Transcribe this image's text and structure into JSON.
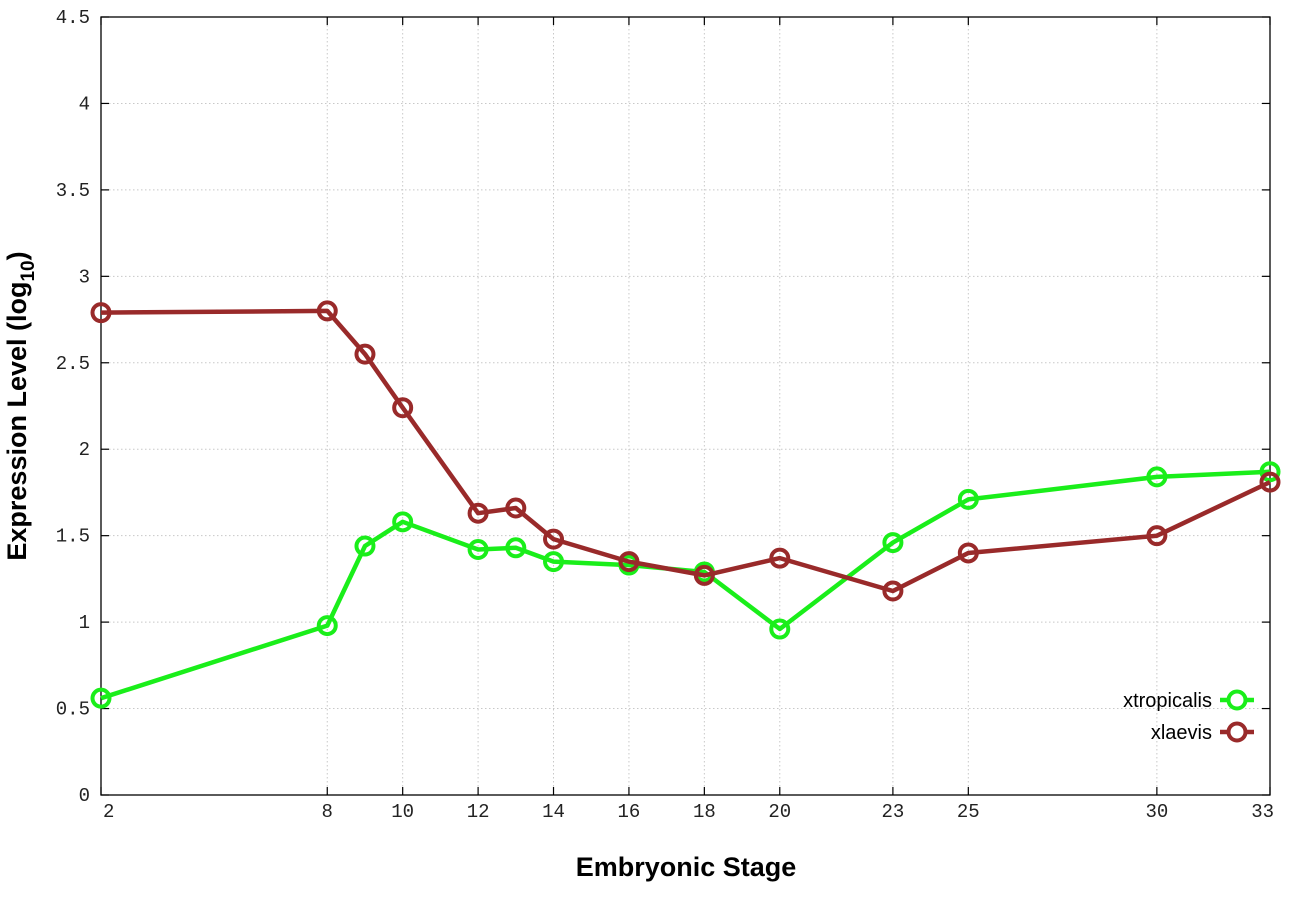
{
  "chart_data": {
    "type": "line",
    "title": "",
    "xlabel": "Embryonic Stage",
    "ylabel_main": "Expression Level (log",
    "ylabel_sub": "10",
    "ylabel_close": ")",
    "xlim": [
      2,
      33
    ],
    "ylim": [
      0,
      4.5
    ],
    "x_ticks": [
      2,
      8,
      10,
      12,
      14,
      16,
      18,
      20,
      23,
      25,
      30,
      33
    ],
    "x_tick_labels": [
      "2",
      "8",
      "10",
      "12",
      "14",
      "16",
      "18",
      "20",
      "23",
      "25",
      "30",
      "33"
    ],
    "y_ticks": [
      0,
      0.5,
      1,
      1.5,
      2,
      2.5,
      3,
      3.5,
      4,
      4.5
    ],
    "y_tick_labels": [
      "0",
      "0.5",
      "1",
      "1.5",
      "2",
      "2.5",
      "3",
      "3.5",
      "4",
      "4.5"
    ],
    "grid": true,
    "legend_position": "bottom-right",
    "series": [
      {
        "name": "xtropicalis",
        "color": "#1aee1a",
        "marker": "open-circle",
        "x": [
          2,
          8,
          9,
          10,
          12,
          13,
          14,
          16,
          18,
          20,
          23,
          25,
          30,
          33
        ],
        "y": [
          0.56,
          0.98,
          1.44,
          1.58,
          1.42,
          1.43,
          1.35,
          1.33,
          1.29,
          0.96,
          1.46,
          1.71,
          1.84,
          1.87
        ]
      },
      {
        "name": "xlaevis",
        "color": "#992a2a",
        "marker": "open-circle",
        "x": [
          2,
          8,
          9,
          10,
          12,
          13,
          14,
          16,
          18,
          20,
          23,
          25,
          30,
          33
        ],
        "y": [
          2.79,
          2.8,
          2.55,
          2.24,
          1.63,
          1.66,
          1.48,
          1.35,
          1.27,
          1.37,
          1.18,
          1.4,
          1.5,
          1.81
        ]
      }
    ]
  }
}
